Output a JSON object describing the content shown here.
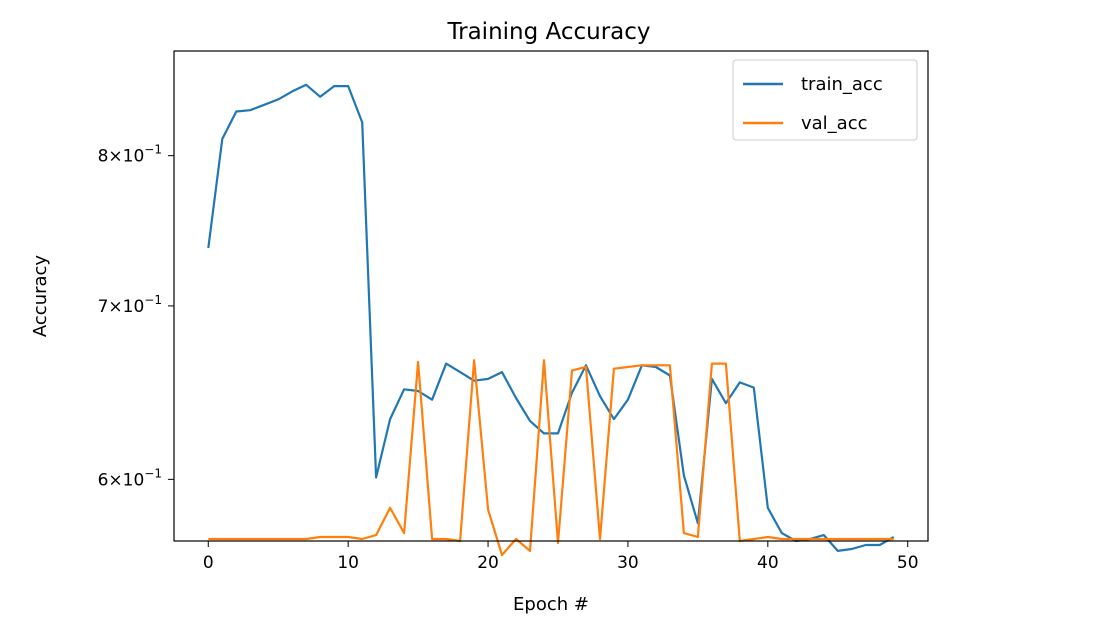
{
  "chart_data": {
    "type": "line",
    "title": "Training Accuracy",
    "xlabel": "Epoch #",
    "ylabel": "Accuracy",
    "yscale": "log",
    "xlim": [
      -2.45,
      51.45
    ],
    "ylim": [
      0.568,
      0.878
    ],
    "grid": false,
    "legend_position": "top-right",
    "x_ticks": [
      0,
      10,
      20,
      30,
      40,
      50
    ],
    "y_ticks": [
      {
        "value": 0.6,
        "mantissa": "6",
        "exponent": "−1"
      },
      {
        "value": 0.7,
        "mantissa": "7",
        "exponent": "−1"
      },
      {
        "value": 0.8,
        "mantissa": "8",
        "exponent": "−1"
      }
    ],
    "times_sign": "×",
    "base": "10",
    "x": [
      0,
      1,
      2,
      3,
      4,
      5,
      6,
      7,
      8,
      9,
      10,
      11,
      12,
      13,
      14,
      15,
      16,
      17,
      18,
      19,
      20,
      21,
      22,
      23,
      24,
      25,
      26,
      27,
      28,
      29,
      30,
      31,
      32,
      33,
      34,
      35,
      36,
      37,
      38,
      39,
      40,
      41,
      42,
      43,
      44,
      45,
      46,
      47,
      48,
      49
    ],
    "series": [
      {
        "name": "train_acc",
        "color": "#1f77b4",
        "values": [
          0.737,
          0.812,
          0.832,
          0.833,
          0.837,
          0.841,
          0.847,
          0.852,
          0.843,
          0.851,
          0.851,
          0.824,
          0.601,
          0.633,
          0.65,
          0.649,
          0.644,
          0.665,
          0.66,
          0.655,
          0.656,
          0.66,
          0.645,
          0.632,
          0.625,
          0.625,
          0.648,
          0.664,
          0.646,
          0.633,
          0.644,
          0.664,
          0.663,
          0.658,
          0.602,
          0.577,
          0.656,
          0.642,
          0.654,
          0.651,
          0.585,
          0.572,
          0.568,
          0.569,
          0.571,
          0.563,
          0.564,
          0.566,
          0.566,
          0.57
        ]
      },
      {
        "name": "val_acc",
        "color": "#ff7f0e",
        "values": [
          0.569,
          0.569,
          0.569,
          0.569,
          0.569,
          0.569,
          0.569,
          0.569,
          0.57,
          0.57,
          0.57,
          0.569,
          0.571,
          0.585,
          0.572,
          0.666,
          0.569,
          0.569,
          0.568,
          0.667,
          0.584,
          0.561,
          0.569,
          0.563,
          0.667,
          0.567,
          0.661,
          0.663,
          0.569,
          0.662,
          0.663,
          0.664,
          0.664,
          0.664,
          0.572,
          0.57,
          0.665,
          0.665,
          0.568,
          0.569,
          0.57,
          0.569,
          0.569,
          0.569,
          0.569,
          0.569,
          0.569,
          0.569,
          0.569,
          0.569
        ]
      }
    ]
  }
}
